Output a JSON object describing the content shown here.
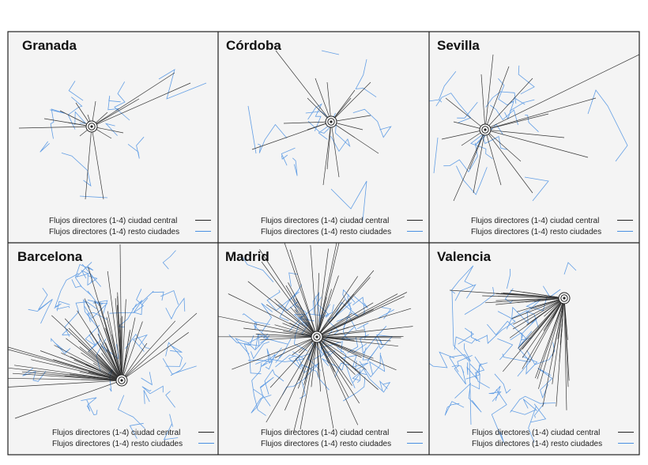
{
  "figure": {
    "panels": [
      {
        "title": "Granada"
      },
      {
        "title": "Córdoba"
      },
      {
        "title": "Sevilla"
      },
      {
        "title": "Barcelona"
      },
      {
        "title": "Madrid"
      },
      {
        "title": "Valencia"
      }
    ],
    "legend": {
      "central_label": "Flujos directores (1-4) ciudad central",
      "rest_label": "Flujos directores (1-4) resto ciudades"
    },
    "colors": {
      "central": "#222222",
      "rest": "#4a90e2",
      "frame": "#222222",
      "panel_bg": "#f4f4f4"
    }
  }
}
